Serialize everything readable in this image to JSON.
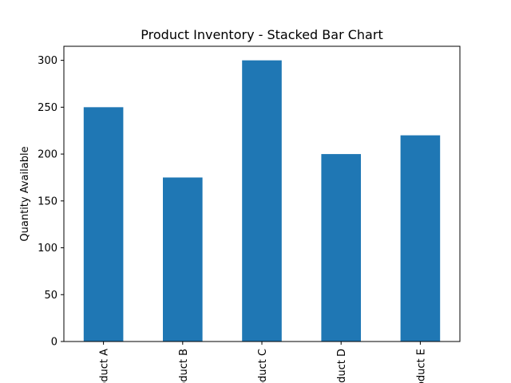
{
  "chart_data": {
    "type": "bar",
    "title": "Product Inventory - Stacked Bar Chart",
    "xlabel": "",
    "ylabel": "Quantity Available",
    "categories": [
      "Product A",
      "Product B",
      "Product C",
      "Product D",
      "Product E"
    ],
    "values": [
      250,
      175,
      300,
      200,
      220
    ],
    "ylim": [
      0,
      315
    ],
    "yticks": [
      0,
      50,
      100,
      150,
      200,
      250,
      300
    ],
    "grid": false,
    "bar_color": "#1f77b4"
  }
}
